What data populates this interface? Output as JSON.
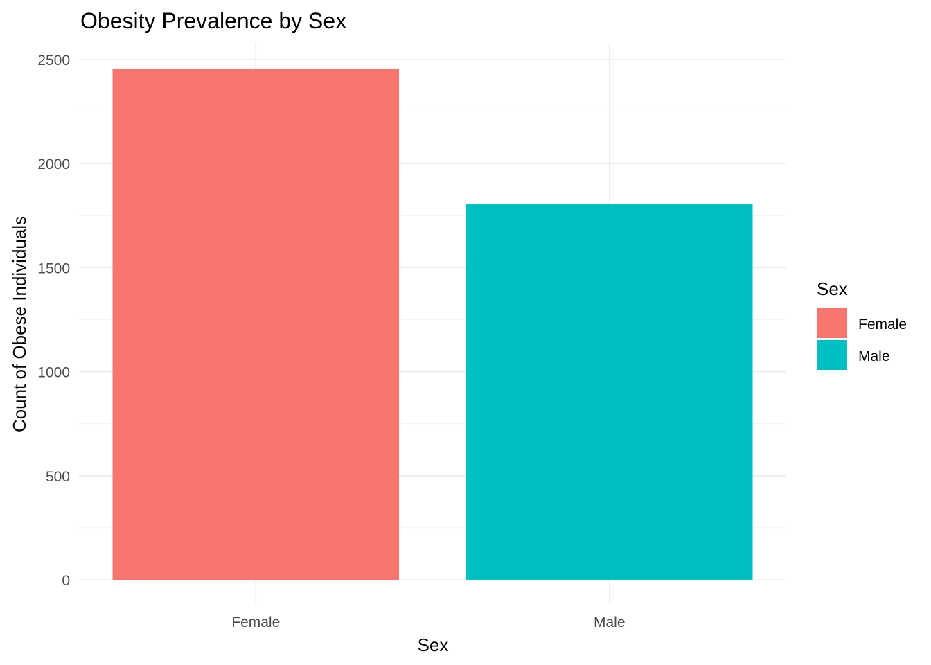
{
  "chart_data": {
    "type": "bar",
    "title": "Obesity Prevalence by Sex",
    "xlabel": "Sex",
    "ylabel": "Count of Obese Individuals",
    "categories": [
      "Female",
      "Male"
    ],
    "values": [
      2455,
      1805
    ],
    "colors": [
      "#F8766D",
      "#00BFC4"
    ],
    "ylim": [
      0,
      2575
    ],
    "yticks": [
      0,
      500,
      1000,
      1500,
      2000,
      2500
    ],
    "grid": true,
    "legend": {
      "title": "Sex",
      "position": "right",
      "entries": [
        {
          "label": "Female",
          "color": "#F8766D"
        },
        {
          "label": "Male",
          "color": "#00BFC4"
        }
      ]
    }
  }
}
